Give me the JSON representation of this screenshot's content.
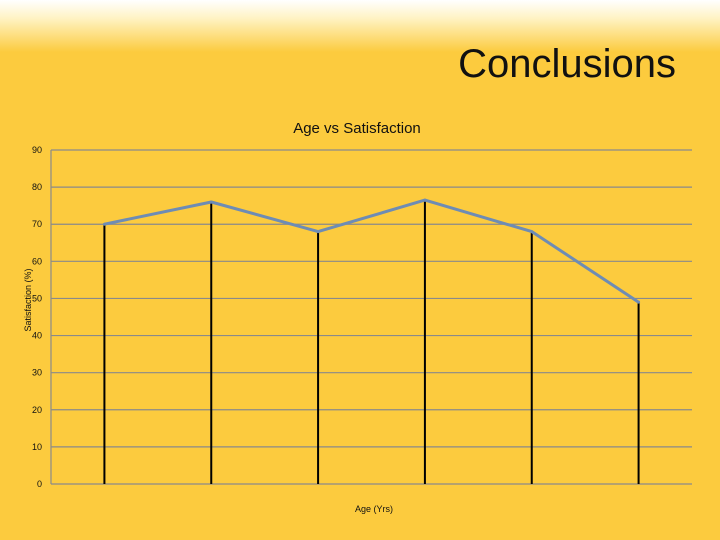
{
  "slide": {
    "title": "Conclusions"
  },
  "colors": {
    "background": "#FCCB3E",
    "line": "#6E8CB4",
    "grid": "#8A8A8A",
    "drop_line": "#000000"
  },
  "chart_data": {
    "type": "line",
    "title": "Age vs Satisfaction",
    "xlabel": "Age (Yrs)",
    "ylabel": "Satisfaction (%)",
    "ylim": [
      0,
      90
    ],
    "yticks": [
      0,
      10,
      20,
      30,
      40,
      50,
      60,
      70,
      80,
      90
    ],
    "grid": true,
    "drop_lines": true,
    "legend": "none",
    "categories": [
      "",
      "",
      "",
      "",
      "",
      ""
    ],
    "series": [
      {
        "values": [
          70,
          76,
          68,
          76.5,
          68,
          49
        ]
      }
    ]
  }
}
